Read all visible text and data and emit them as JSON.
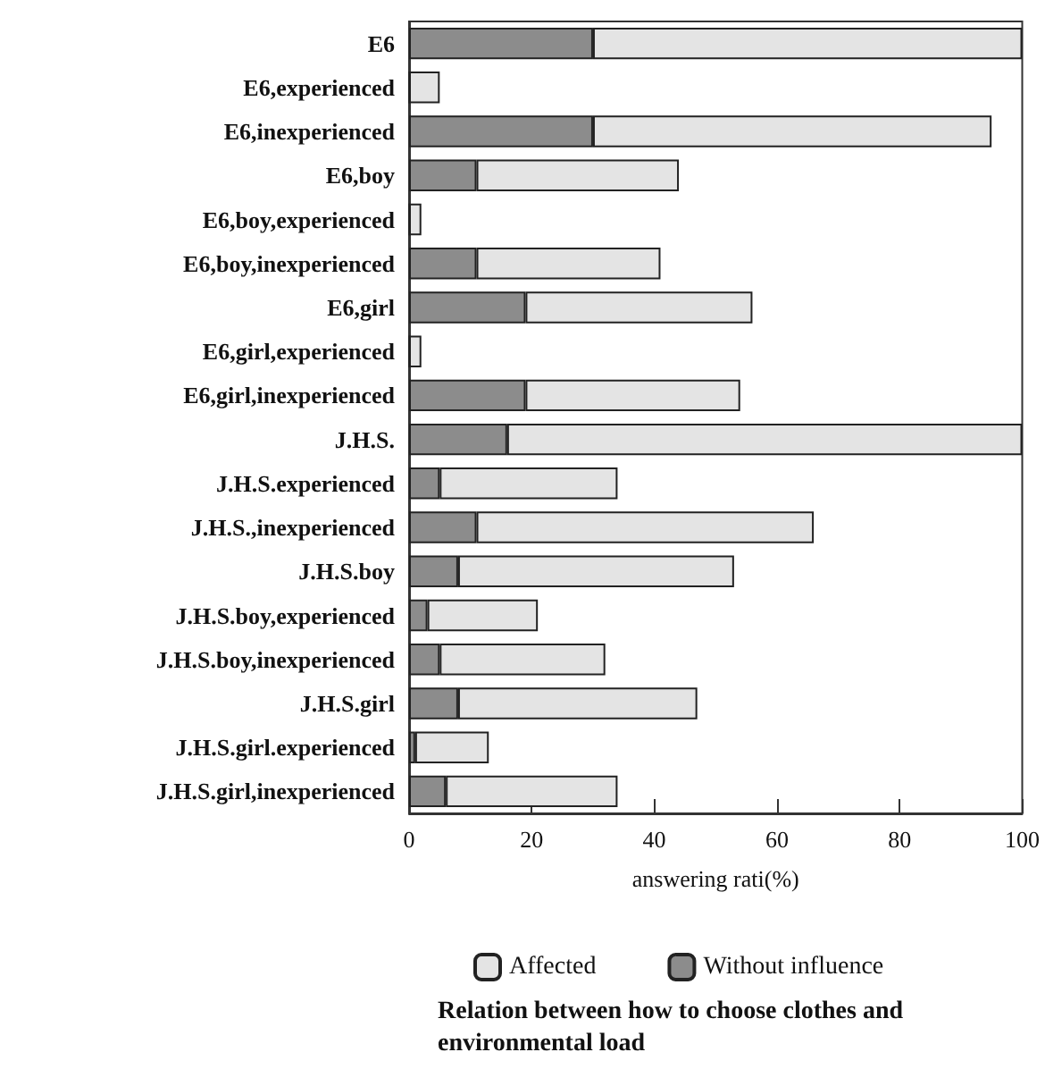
{
  "chart_data": {
    "type": "bar",
    "orientation": "horizontal",
    "stacked": true,
    "title": "Relation between how to choose clothes and environmental load",
    "xlabel": "answering rati(%)",
    "categories": [
      "E6",
      "E6,experienced",
      "E6,inexperienced",
      "E6,boy",
      "E6,boy,experienced",
      "E6,boy,inexperienced",
      "E6,girl",
      "E6,girl,experienced",
      "E6,girl,inexperienced",
      "J.H.S.",
      "J.H.S.experienced",
      "J.H.S.,inexperienced",
      "J.H.S.boy",
      "J.H.S.boy,experienced",
      "J.H.S.boy,inexperienced",
      "J.H.S.girl",
      "J.H.S.girl.experienced",
      "J.H.S.girl,inexperienced"
    ],
    "series": [
      {
        "name": "Without influence",
        "color": "#8c8c8c",
        "values": [
          30,
          0,
          30,
          11,
          0,
          11,
          19,
          0,
          19,
          16,
          5,
          11,
          8,
          3,
          5,
          8,
          1,
          6
        ]
      },
      {
        "name": "Affected",
        "color": "#e4e4e4",
        "values": [
          70,
          5,
          65,
          33,
          2,
          30,
          37,
          2,
          35,
          84,
          29,
          55,
          45,
          18,
          27,
          39,
          12,
          28
        ]
      }
    ],
    "xlim": [
      0,
      100
    ],
    "xticks": [
      0,
      20,
      40,
      60,
      80,
      100
    ],
    "grid": false,
    "legend": "bottom"
  }
}
